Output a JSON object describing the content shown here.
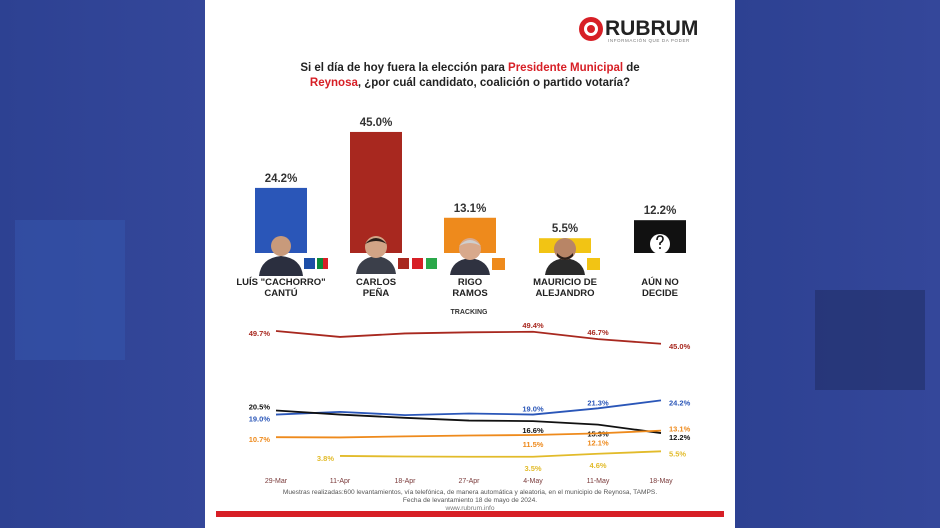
{
  "logo": {
    "name": "RUBRUM",
    "tagline": "INFORMACIÓN QUE DA PODER"
  },
  "title_parts": [
    "Si el día de hoy fuera la elección para ",
    "Presidente Municipal",
    " de",
    "Reynosa",
    ", ¿por cuál candidato, coalición o partido votaría?"
  ],
  "chart_data": [
    {
      "type": "bar",
      "categories": [
        "LUÍS \"CACHORRO\"\nCANTÚ",
        "CARLOS\nPEÑA",
        "RIGO\nRAMOS",
        "MAURICIO DE\nALEJANDRO",
        "AÚN NO\nDECIDE"
      ],
      "values": [
        24.2,
        45.0,
        13.1,
        5.5,
        12.2
      ],
      "value_labels": [
        "24.2%",
        "45.0%",
        "13.1%",
        "5.5%",
        "12.2%"
      ],
      "colors": [
        "#2a56b8",
        "#a8281f",
        "#ee8a1c",
        "#f2c414",
        "#111111"
      ]
    },
    {
      "type": "line",
      "title": "TRACKING",
      "categories": [
        "29-Mar",
        "11-Apr",
        "18-Apr",
        "27-Apr",
        "4-May",
        "11-May",
        "18-May"
      ],
      "ylim": [
        0,
        52
      ],
      "series": [
        {
          "color": "#a8281f",
          "values": [
            49.7,
            47.5,
            48.8,
            49.2,
            49.4,
            46.7,
            45.0
          ],
          "value_labels": [
            "49.7%",
            null,
            null,
            null,
            "49.4%",
            "46.7%",
            "45.0%"
          ]
        },
        {
          "color": "#2a56b8",
          "values": [
            19.0,
            20.0,
            18.8,
            19.4,
            19.0,
            21.3,
            24.2
          ],
          "value_labels": [
            "19.0%",
            null,
            null,
            null,
            "19.0%",
            "21.3%",
            "24.2%"
          ]
        },
        {
          "color": "#111111",
          "values": [
            20.5,
            19.0,
            17.8,
            16.8,
            16.6,
            15.3,
            12.2
          ],
          "value_labels": [
            "20.5%",
            null,
            null,
            null,
            "16.6%",
            "15.3%",
            "12.2%"
          ]
        },
        {
          "color": "#ee8a1c",
          "values": [
            10.7,
            10.6,
            11.0,
            11.3,
            11.5,
            12.1,
            13.1
          ],
          "value_labels": [
            "10.7%",
            null,
            null,
            null,
            "11.5%",
            "12.1%",
            "13.1%"
          ]
        },
        {
          "color": "#e2bb2a",
          "values": [
            null,
            3.8,
            3.6,
            3.5,
            3.5,
            4.6,
            5.5
          ],
          "value_labels": [
            null,
            "3.8%",
            null,
            null,
            "3.5%",
            "4.6%",
            "5.5%"
          ]
        }
      ]
    }
  ],
  "footer": {
    "note": "Muestras realizadas:600 levantamientos, vía telefónica, de manera automática y aleatoria, en el municipio de Reynosa, TAMPS.",
    "date": "Fecha de levantamiento 18 de mayo de 2024.",
    "url": "www.rubrum.info"
  }
}
